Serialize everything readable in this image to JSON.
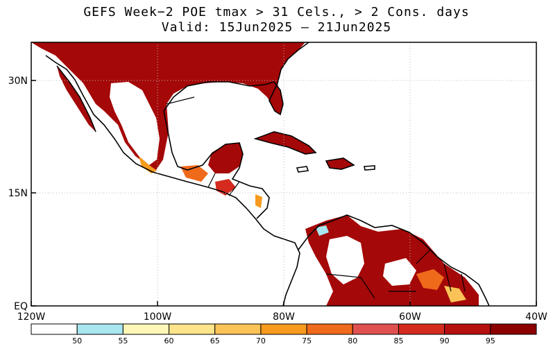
{
  "title_line1": "GEFS Week−2 POE tmax > 31 Cels., > 2 Cons. days",
  "title_line2": "Valid: 15Jun2025 — 21Jun2025",
  "map": {
    "lat_labels": [
      "30N",
      "15N",
      "EQ"
    ],
    "lon_labels": [
      "120W",
      "100W",
      "80W",
      "60W",
      "40W"
    ]
  },
  "colorbar": {
    "colors": [
      "#ffffff",
      "#a8e6f0",
      "#fff7b8",
      "#fde48a",
      "#fbc357",
      "#f79a1e",
      "#f06a1c",
      "#e05050",
      "#d42b1e",
      "#b50f0f",
      "#8c0000"
    ],
    "labels": [
      "50",
      "55",
      "60",
      "65",
      "70",
      "75",
      "80",
      "85",
      "90",
      "95"
    ]
  }
}
